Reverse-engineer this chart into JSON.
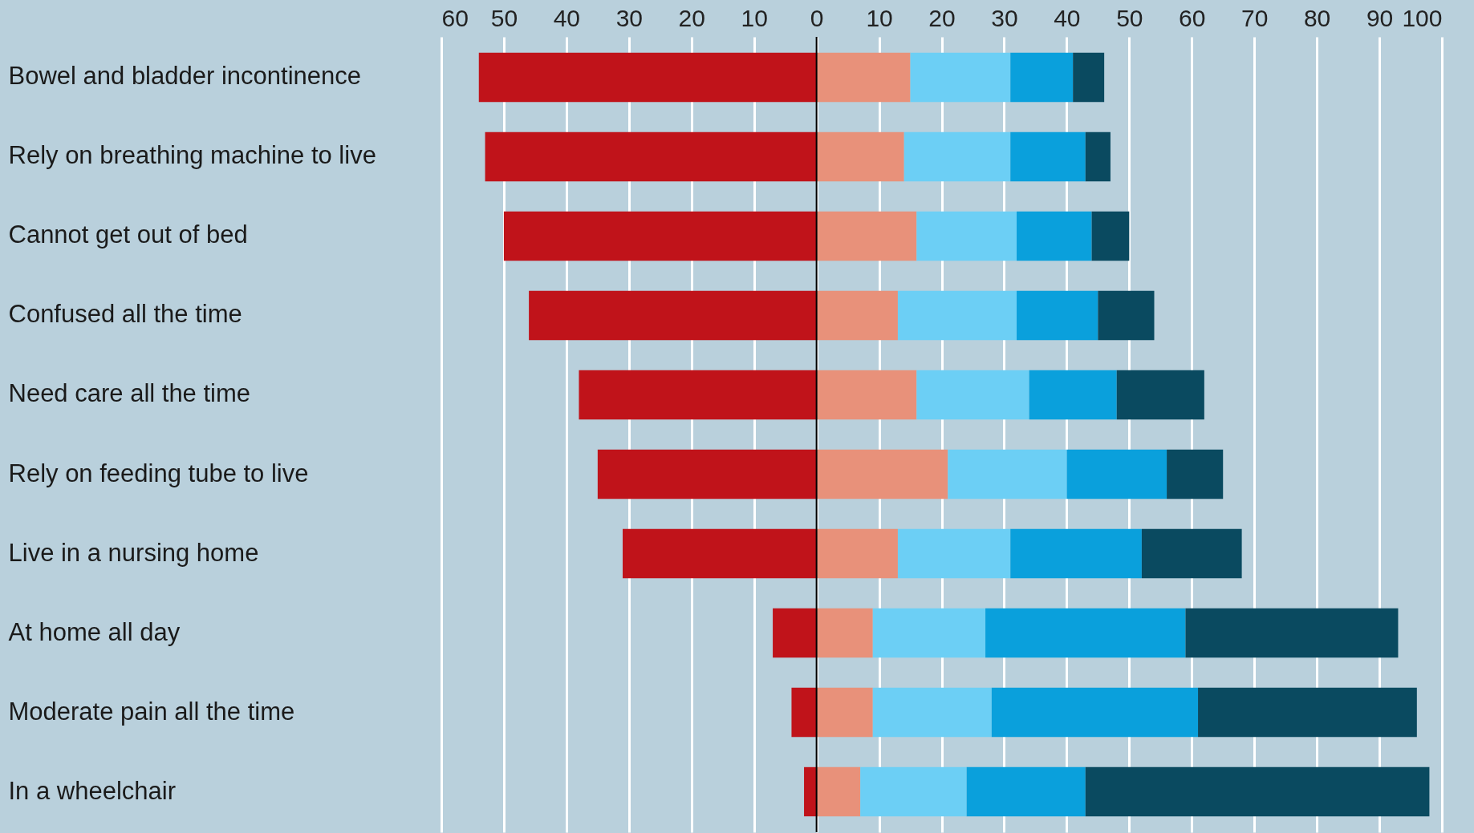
{
  "chart_data": {
    "type": "bar",
    "orientation": "horizontal",
    "stacked": true,
    "categories": [
      "Bowel and bladder incontinence",
      "Rely on breathing machine to live",
      "Cannot get out of bed",
      "Confused all the time",
      "Need care all the time",
      "Rely on feeding tube to live",
      "Live in a nursing home",
      "At home all day",
      "Moderate pain all the time",
      "In a wheelchair"
    ],
    "series": [
      {
        "color": "#c0131a",
        "values": [
          -54,
          -53,
          -50,
          -46,
          -38,
          -35,
          -31,
          -7,
          -4,
          -2
        ]
      },
      {
        "color": "#e8917a",
        "values": [
          15,
          14,
          16,
          13,
          16,
          21,
          13,
          9,
          9,
          7
        ]
      },
      {
        "color": "#6ccff5",
        "values": [
          16,
          17,
          16,
          19,
          18,
          19,
          18,
          18,
          19,
          17
        ]
      },
      {
        "color": "#0aa0dc",
        "values": [
          10,
          12,
          12,
          13,
          14,
          16,
          21,
          32,
          33,
          19
        ]
      },
      {
        "color": "#0a4a60",
        "values": [
          5,
          4,
          6,
          9,
          14,
          9,
          16,
          34,
          35,
          55
        ]
      }
    ],
    "xlim": [
      -60,
      100
    ],
    "xticks": [
      {
        "value": -60,
        "label": "60"
      },
      {
        "value": -50,
        "label": "50"
      },
      {
        "value": -40,
        "label": "40"
      },
      {
        "value": -30,
        "label": "30"
      },
      {
        "value": -20,
        "label": "20"
      },
      {
        "value": -10,
        "label": "10"
      },
      0,
      10,
      20,
      30,
      40,
      50,
      60,
      70,
      80,
      90,
      100
    ],
    "grid": "x",
    "legend": false,
    "ref_lines": [
      {
        "axis": "x",
        "value": 0,
        "color": "#000000"
      }
    ]
  }
}
